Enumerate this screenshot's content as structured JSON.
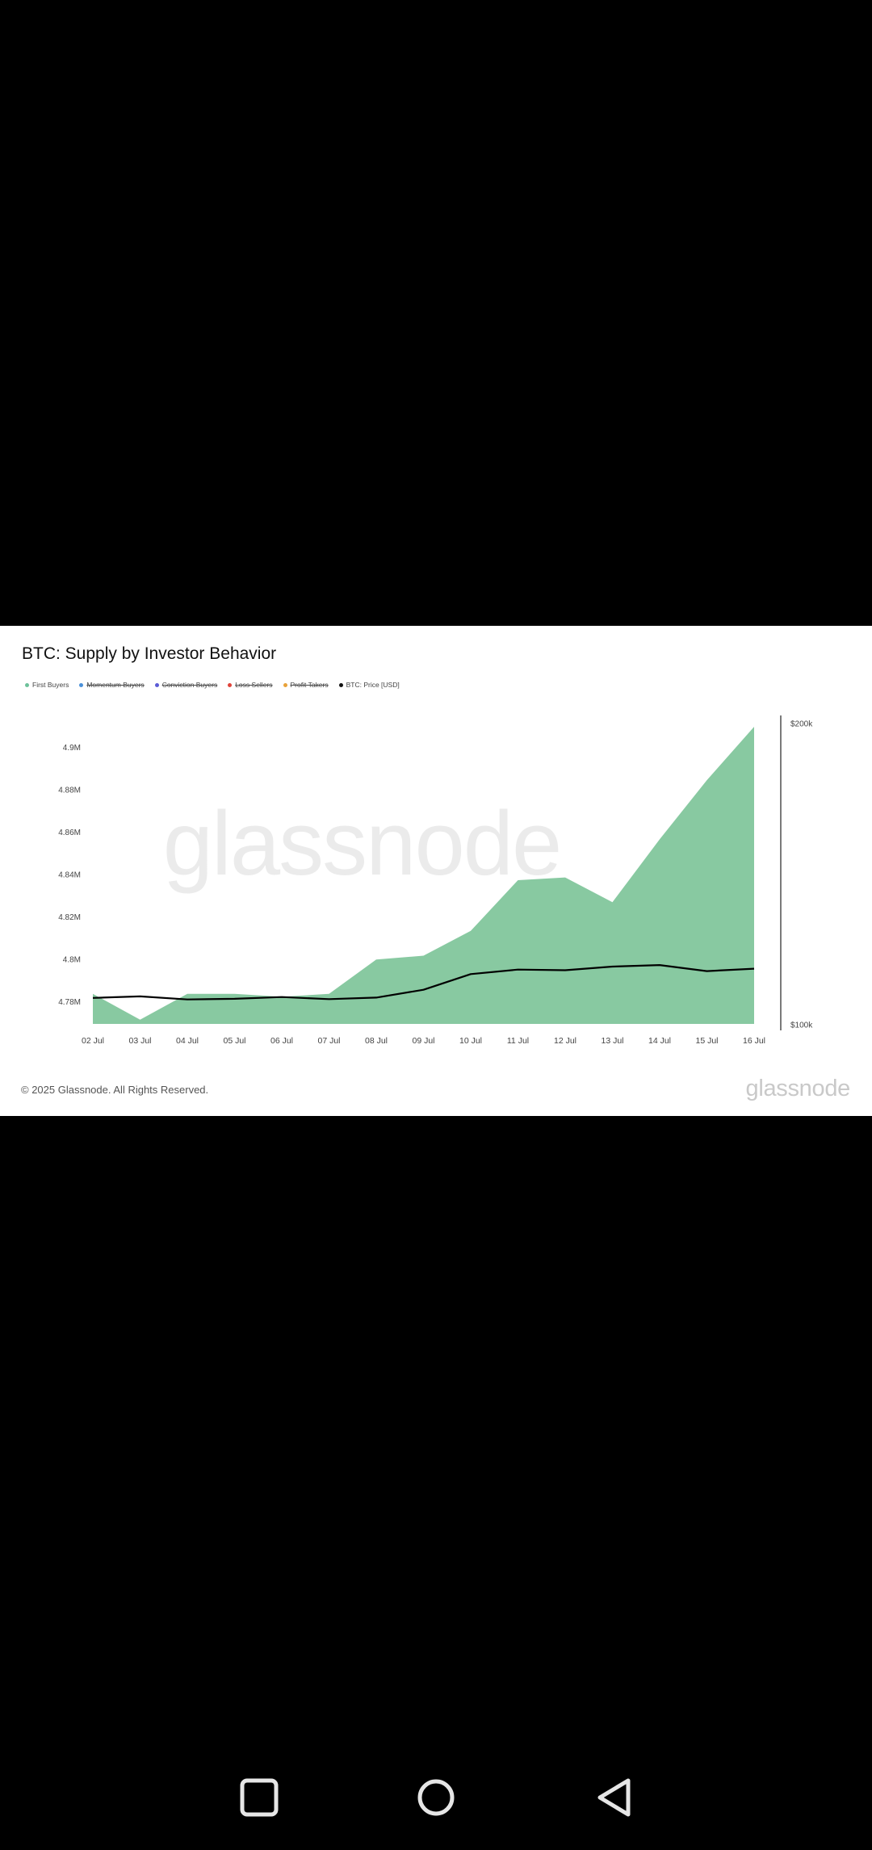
{
  "chart": {
    "title": "BTC: Supply by Investor Behavior",
    "legend": [
      {
        "label": "First Buyers",
        "color": "#6dc19a",
        "hidden": false
      },
      {
        "label": "Momentum Buyers",
        "color": "#4a90d9",
        "hidden": true
      },
      {
        "label": "Conviction Buyers",
        "color": "#5b5bd6",
        "hidden": true
      },
      {
        "label": "Loss Sellers",
        "color": "#e0433a",
        "hidden": true
      },
      {
        "label": "Profit Takers",
        "color": "#e8a23a",
        "hidden": true
      },
      {
        "label": "BTC: Price [USD]",
        "color": "#111111",
        "hidden": false
      }
    ],
    "watermark": "glassnode",
    "copyright": "© 2025 Glassnode. All Rights Reserved.",
    "brand": "glassnode"
  },
  "chart_data": {
    "type": "area",
    "title": "BTC: Supply by Investor Behavior",
    "categories": [
      "02 Jul",
      "03 Jul",
      "04 Jul",
      "05 Jul",
      "06 Jul",
      "07 Jul",
      "08 Jul",
      "09 Jul",
      "10 Jul",
      "11 Jul",
      "12 Jul",
      "13 Jul",
      "14 Jul",
      "15 Jul",
      "16 Jul"
    ],
    "series": [
      {
        "name": "First Buyers",
        "axis": "left",
        "color": "#88c9a1",
        "values": [
          4.7837,
          4.7715,
          4.7837,
          4.7837,
          4.7823,
          4.7837,
          4.7999,
          4.8017,
          4.8134,
          4.8373,
          4.8386,
          4.8269,
          4.8566,
          4.8845,
          4.9097
        ]
      },
      {
        "name": "BTC: Price [USD]",
        "axis": "right",
        "color": "#000000",
        "values": [
          108900,
          109400,
          108400,
          108600,
          109200,
          108500,
          109000,
          111600,
          116800,
          118300,
          118100,
          119300,
          119800,
          117800,
          118600
        ]
      }
    ],
    "y_left": {
      "ticks": [
        4.78,
        4.8,
        4.82,
        4.84,
        4.86,
        4.88,
        4.9
      ],
      "tick_labels": [
        "4.78M",
        "4.8M",
        "4.82M",
        "4.84M",
        "4.86M",
        "4.88M",
        "4.9M"
      ],
      "range": [
        4.7695,
        4.9097
      ]
    },
    "y_right": {
      "ticks": [
        100000,
        200000
      ],
      "tick_labels": [
        "$100k",
        "$200k"
      ],
      "range": [
        100000,
        200000
      ]
    },
    "grid": false,
    "legend_position": "top-left"
  },
  "system_nav": {
    "recents_icon": "square-icon",
    "home_icon": "circle-icon",
    "back_icon": "triangle-back-icon"
  }
}
